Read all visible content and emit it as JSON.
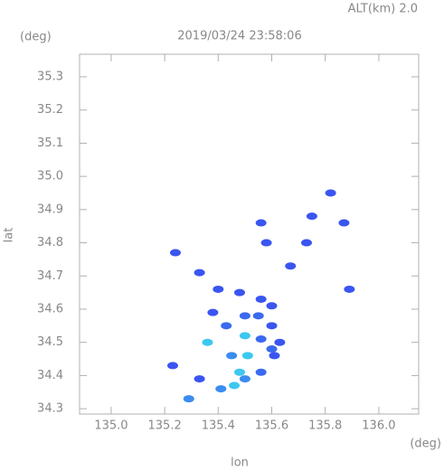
{
  "chart_data": {
    "type": "scatter",
    "title": "2019/03/24 23:58:06",
    "subtitle": "ALT(km) 2.0",
    "y_unit": "(deg)",
    "x_unit": "(deg)",
    "ylabel": "lat",
    "xlabel": "lon",
    "xlim": [
      134.882,
      136.149
    ],
    "ylim": [
      34.284,
      35.368
    ],
    "xticks": [
      {
        "value": 135,
        "label": "135.0"
      },
      135.2,
      135.4,
      135.6,
      135.8,
      {
        "value": 136,
        "label": "136.0"
      }
    ],
    "yticks": [
      34.3,
      34.4,
      34.5,
      34.6,
      34.7,
      34.8,
      34.9,
      {
        "value": 35,
        "label": "35.0"
      },
      35.1,
      35.2,
      35.3
    ],
    "x": [
      135.75,
      135.82,
      135.87,
      135.73,
      135.56,
      135.58,
      135.24,
      135.67,
      135.33,
      135.89,
      135.4,
      135.48,
      135.56,
      135.6,
      135.38,
      135.43,
      135.5,
      135.5,
      135.56,
      135.6,
      135.51,
      135.48,
      135.56,
      135.61,
      135.23,
      135.33,
      135.36,
      135.41,
      135.46,
      135.5,
      135.29,
      135.6,
      135.63,
      135.55,
      135.45
    ],
    "y": [
      34.88,
      34.95,
      34.86,
      34.8,
      34.86,
      34.8,
      34.77,
      34.73,
      34.71,
      34.66,
      34.66,
      34.65,
      34.63,
      34.61,
      34.59,
      34.55,
      34.58,
      34.52,
      34.51,
      34.48,
      34.46,
      34.41,
      34.41,
      34.46,
      34.43,
      34.39,
      34.5,
      34.36,
      34.37,
      34.39,
      34.33,
      34.55,
      34.5,
      34.58,
      34.46
    ],
    "colors": [
      "#3a55f0",
      "#3a55f0",
      "#3a55f0",
      "#3a55f0",
      "#3a55f0",
      "#3a55f0",
      "#3a55f0",
      "#3a55f0",
      "#3a55f0",
      "#3a55f0",
      "#3a55f0",
      "#3a55f0",
      "#3a55f0",
      "#3a55f0",
      "#3a55f0",
      "#3a6af0",
      "#3a6af0",
      "#3cc8f0",
      "#3a6af0",
      "#3a6af0",
      "#3cc8f0",
      "#3cc8f0",
      "#3a6af0",
      "#3a55f0",
      "#3a55f0",
      "#3a55f0",
      "#3cc8f0",
      "#3a8cf0",
      "#3cc8f0",
      "#3a8cf0",
      "#3a8cf0",
      "#3a55f0",
      "#3a55f0",
      "#3a6af0",
      "#3a8cf0"
    ],
    "frame_color": "#b0b0b0"
  }
}
